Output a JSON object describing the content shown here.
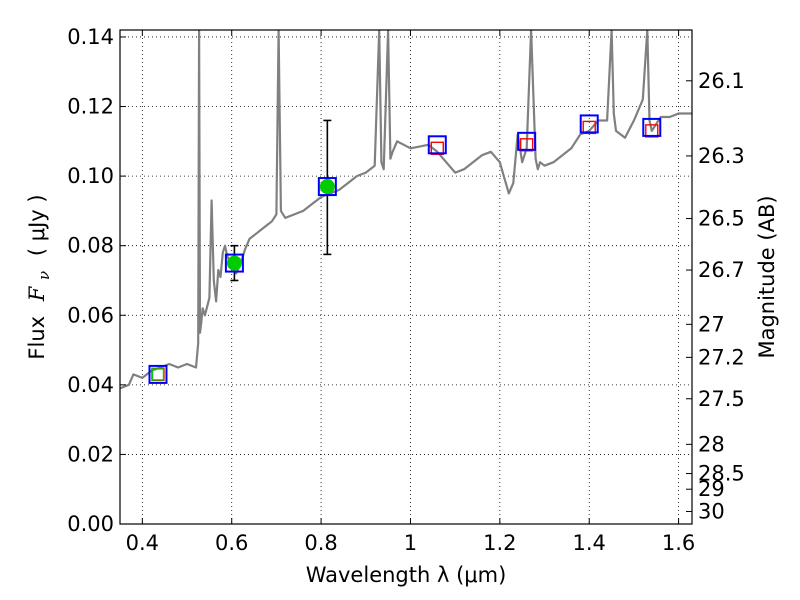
{
  "chart_data": {
    "type": "line",
    "xlabel": "Wavelength  λ (μm)",
    "ylabel_prefix": "Flux",
    "ylabel_symbol": "F",
    "ylabel_sub": "ν",
    "ylabel_unit": "( μJy )",
    "y2label": "Magnitude (AB)",
    "xlim": [
      0.35,
      1.63
    ],
    "ylim": [
      0.0,
      0.142
    ],
    "grid": true,
    "x_ticks": [
      0.4,
      0.6,
      0.8,
      1.0,
      1.2,
      1.4,
      1.6
    ],
    "x_tick_labels": [
      "0.4",
      "0.6",
      "0.8",
      "1",
      "1.2",
      "1.4",
      "1.6"
    ],
    "y_ticks": [
      0.0,
      0.02,
      0.04,
      0.06,
      0.08,
      0.1,
      0.12,
      0.14
    ],
    "y_tick_labels": [
      "0.00",
      "0.02",
      "0.04",
      "0.06",
      "0.08",
      "0.10",
      "0.12",
      "0.14"
    ],
    "mag_ticks": [
      {
        "flux": 0.1274,
        "label": "26.1"
      },
      {
        "flux": 0.1058,
        "label": "26.3"
      },
      {
        "flux": 0.0878,
        "label": "26.5"
      },
      {
        "flux": 0.073,
        "label": "26.7"
      },
      {
        "flux": 0.0574,
        "label": "27"
      },
      {
        "flux": 0.0479,
        "label": "27.2"
      },
      {
        "flux": 0.036,
        "label": "27.5"
      },
      {
        "flux": 0.0229,
        "label": "28"
      },
      {
        "flux": 0.0145,
        "label": "28.5"
      },
      {
        "flux": 0.01,
        "label": "29"
      },
      {
        "flux": 0.0036,
        "label": "30"
      }
    ],
    "colors": {
      "model": "#808080",
      "observed": "#00cc00",
      "model_box": "#0000ff",
      "upper": "#ff0000",
      "errorbar": "#000000"
    },
    "series": [
      {
        "name": "model-sed",
        "kind": "line",
        "x": [
          0.35,
          0.37,
          0.38,
          0.4,
          0.42,
          0.44,
          0.46,
          0.48,
          0.5,
          0.52,
          0.525,
          0.527,
          0.529,
          0.532,
          0.535,
          0.54,
          0.55,
          0.555,
          0.56,
          0.565,
          0.57,
          0.575,
          0.58,
          0.585,
          0.59,
          0.6,
          0.61,
          0.62,
          0.63,
          0.64,
          0.65,
          0.66,
          0.67,
          0.68,
          0.69,
          0.7,
          0.705,
          0.71,
          0.72,
          0.74,
          0.76,
          0.78,
          0.8,
          0.82,
          0.84,
          0.86,
          0.88,
          0.9,
          0.92,
          0.93,
          0.935,
          0.94,
          0.95,
          0.955,
          0.96,
          0.97,
          1.0,
          1.04,
          1.06,
          1.08,
          1.1,
          1.12,
          1.14,
          1.16,
          1.18,
          1.2,
          1.22,
          1.23,
          1.24,
          1.25,
          1.26,
          1.27,
          1.28,
          1.285,
          1.29,
          1.3,
          1.32,
          1.34,
          1.36,
          1.38,
          1.4,
          1.42,
          1.44,
          1.45,
          1.455,
          1.46,
          1.48,
          1.5,
          1.52,
          1.53,
          1.535,
          1.54,
          1.56,
          1.58,
          1.6,
          1.63
        ],
        "y": [
          0.039,
          0.04,
          0.043,
          0.042,
          0.044,
          0.045,
          0.046,
          0.045,
          0.046,
          0.045,
          0.052,
          0.142,
          0.055,
          0.058,
          0.062,
          0.06,
          0.065,
          0.093,
          0.07,
          0.064,
          0.073,
          0.071,
          0.078,
          0.08,
          0.077,
          0.074,
          0.072,
          0.075,
          0.079,
          0.082,
          0.083,
          0.084,
          0.085,
          0.086,
          0.087,
          0.089,
          0.142,
          0.09,
          0.088,
          0.089,
          0.09,
          0.092,
          0.094,
          0.095,
          0.096,
          0.098,
          0.1,
          0.101,
          0.103,
          0.142,
          0.104,
          0.102,
          0.142,
          0.105,
          0.107,
          0.11,
          0.108,
          0.109,
          0.107,
          0.104,
          0.101,
          0.102,
          0.104,
          0.106,
          0.107,
          0.104,
          0.095,
          0.098,
          0.112,
          0.104,
          0.108,
          0.142,
          0.105,
          0.102,
          0.104,
          0.103,
          0.104,
          0.106,
          0.108,
          0.112,
          0.113,
          0.116,
          0.116,
          0.142,
          0.118,
          0.113,
          0.111,
          0.116,
          0.122,
          0.142,
          0.116,
          0.113,
          0.117,
          0.117,
          0.118,
          0.118
        ]
      },
      {
        "name": "observed-photometry",
        "kind": "scatter",
        "x": [
          0.606,
          0.814
        ],
        "y": [
          0.075,
          0.097
        ],
        "yerr_low": [
          0.07,
          0.0775
        ],
        "yerr_high": [
          0.08,
          0.116
        ]
      },
      {
        "name": "model-photometry",
        "kind": "square",
        "x": [
          0.435,
          0.606,
          0.814,
          1.06,
          1.26,
          1.4,
          1.54
        ],
        "y": [
          0.043,
          0.075,
          0.097,
          0.109,
          0.11,
          0.115,
          0.114
        ]
      },
      {
        "name": "observed-upper-bands",
        "kind": "square",
        "x": [
          0.435,
          1.06,
          1.26,
          1.4,
          1.54
        ],
        "y": [
          0.043,
          0.108,
          0.109,
          0.114,
          0.113
        ]
      }
    ]
  }
}
